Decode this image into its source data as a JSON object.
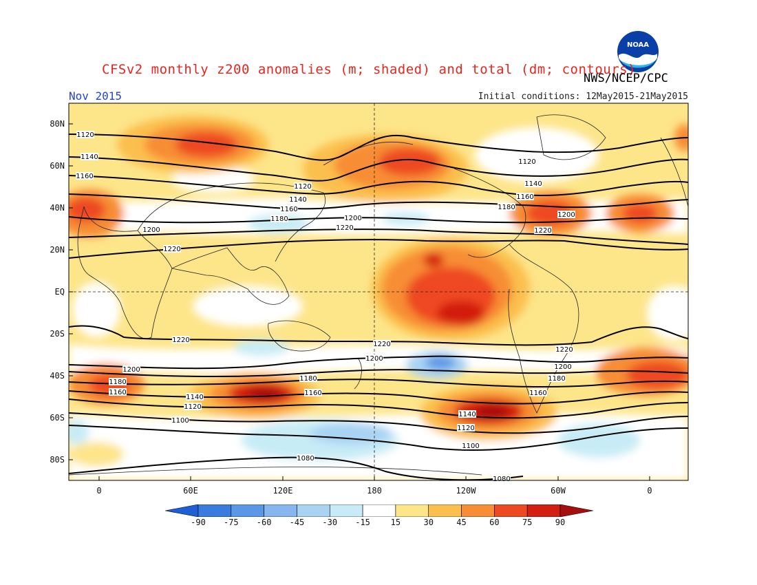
{
  "header": {
    "title": "CFSv2 monthly z200 anomalies (m; shaded) and total (dm; contours)",
    "agency": "NWS/NCEP/CPC",
    "month": "Nov 2015",
    "initial_conditions": "Initial conditions: 12May2015-21May2015",
    "logo_text": "NOAA"
  },
  "axes": {
    "lat_labels": [
      "80N",
      "60N",
      "40N",
      "20N",
      "EQ",
      "20S",
      "40S",
      "60S",
      "80S"
    ],
    "lon_labels": [
      "0",
      "60E",
      "120E",
      "180",
      "120W",
      "60W",
      "0"
    ]
  },
  "colorbar": {
    "ticks": [
      "-90",
      "-75",
      "-60",
      "-45",
      "-30",
      "-15",
      "15",
      "30",
      "45",
      "60",
      "75",
      "90"
    ],
    "colors": [
      "#1e5fd6",
      "#3a7be0",
      "#5c97e6",
      "#86b6ee",
      "#a9d3f3",
      "#c8ecf6",
      "#ffffff",
      "#fde58a",
      "#fbbf4e",
      "#f78d35",
      "#ee4a21",
      "#d31f11",
      "#a50f0f"
    ]
  },
  "contours": {
    "labels": [
      "1080",
      "1100",
      "1120",
      "1140",
      "1160",
      "1180",
      "1200",
      "1220"
    ]
  },
  "colors": {
    "title": "#e8251f",
    "month": "#2244dd"
  }
}
